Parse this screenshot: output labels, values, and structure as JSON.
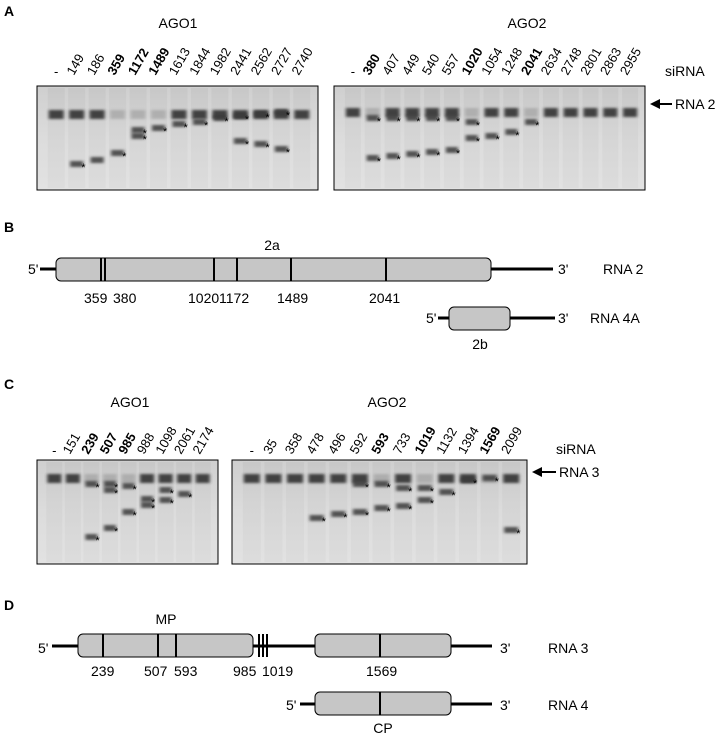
{
  "panelA": {
    "letter": "A",
    "siRNA_label": "siRNA",
    "target_label": "RNA 2",
    "blots": [
      {
        "title": "AGO1",
        "lanes": [
          {
            "label": "-",
            "bold": false
          },
          {
            "label": "149",
            "bold": false
          },
          {
            "label": "186",
            "bold": false
          },
          {
            "label": "359",
            "bold": true
          },
          {
            "label": "1172",
            "bold": true
          },
          {
            "label": "1489",
            "bold": true
          },
          {
            "label": "1613",
            "bold": false
          },
          {
            "label": "1844",
            "bold": false
          },
          {
            "label": "1982",
            "bold": false
          },
          {
            "label": "2441",
            "bold": false
          },
          {
            "label": "2562",
            "bold": false
          },
          {
            "label": "2727",
            "bold": false
          },
          {
            "label": "2740",
            "bold": false
          }
        ]
      },
      {
        "title": "AGO2",
        "lanes": [
          {
            "label": "-",
            "bold": false
          },
          {
            "label": "380",
            "bold": true
          },
          {
            "label": "407",
            "bold": false
          },
          {
            "label": "449",
            "bold": false
          },
          {
            "label": "540",
            "bold": false
          },
          {
            "label": "557",
            "bold": false
          },
          {
            "label": "1020",
            "bold": true
          },
          {
            "label": "1054",
            "bold": false
          },
          {
            "label": "1248",
            "bold": false
          },
          {
            "label": "2041",
            "bold": true
          },
          {
            "label": "2634",
            "bold": false
          },
          {
            "label": "2748",
            "bold": false
          },
          {
            "label": "2801",
            "bold": false
          },
          {
            "label": "2863",
            "bold": false
          },
          {
            "label": "2955",
            "bold": false
          }
        ]
      }
    ]
  },
  "panelB": {
    "letter": "B",
    "rna2": {
      "five": "5'",
      "three": "3'",
      "name": "RNA 2",
      "orf": "2a",
      "sites": [
        "359",
        "380",
        "1020",
        "1172",
        "1489",
        "2041"
      ]
    },
    "rna4a": {
      "five": "5'",
      "three": "3'",
      "name": "RNA 4A",
      "orf": "2b"
    }
  },
  "panelC": {
    "letter": "C",
    "siRNA_label": "siRNA",
    "target_label": "RNA 3",
    "blots": [
      {
        "title": "AGO1",
        "lanes": [
          {
            "label": "-",
            "bold": false
          },
          {
            "label": "151",
            "bold": false
          },
          {
            "label": "239",
            "bold": true
          },
          {
            "label": "507",
            "bold": true
          },
          {
            "label": "985",
            "bold": true
          },
          {
            "label": "988",
            "bold": false
          },
          {
            "label": "1098",
            "bold": false
          },
          {
            "label": "2061",
            "bold": false
          },
          {
            "label": "2174",
            "bold": false
          }
        ]
      },
      {
        "title": "AGO2",
        "lanes": [
          {
            "label": "-",
            "bold": false
          },
          {
            "label": "35",
            "bold": false
          },
          {
            "label": "358",
            "bold": false
          },
          {
            "label": "478",
            "bold": false
          },
          {
            "label": "496",
            "bold": false
          },
          {
            "label": "592",
            "bold": false
          },
          {
            "label": "593",
            "bold": true
          },
          {
            "label": "733",
            "bold": false
          },
          {
            "label": "1019",
            "bold": true
          },
          {
            "label": "1132",
            "bold": false
          },
          {
            "label": "1394",
            "bold": false
          },
          {
            "label": "1569",
            "bold": true
          },
          {
            "label": "2099",
            "bold": false
          }
        ]
      }
    ]
  },
  "panelD": {
    "letter": "D",
    "rna3": {
      "five": "5'",
      "three": "3'",
      "name": "RNA 3",
      "orf": "MP",
      "sites": [
        "239",
        "507",
        "593",
        "985",
        "1019",
        "1569"
      ]
    },
    "rna4": {
      "five": "5'",
      "three": "3'",
      "name": "RNA 4",
      "orf": "CP"
    }
  }
}
